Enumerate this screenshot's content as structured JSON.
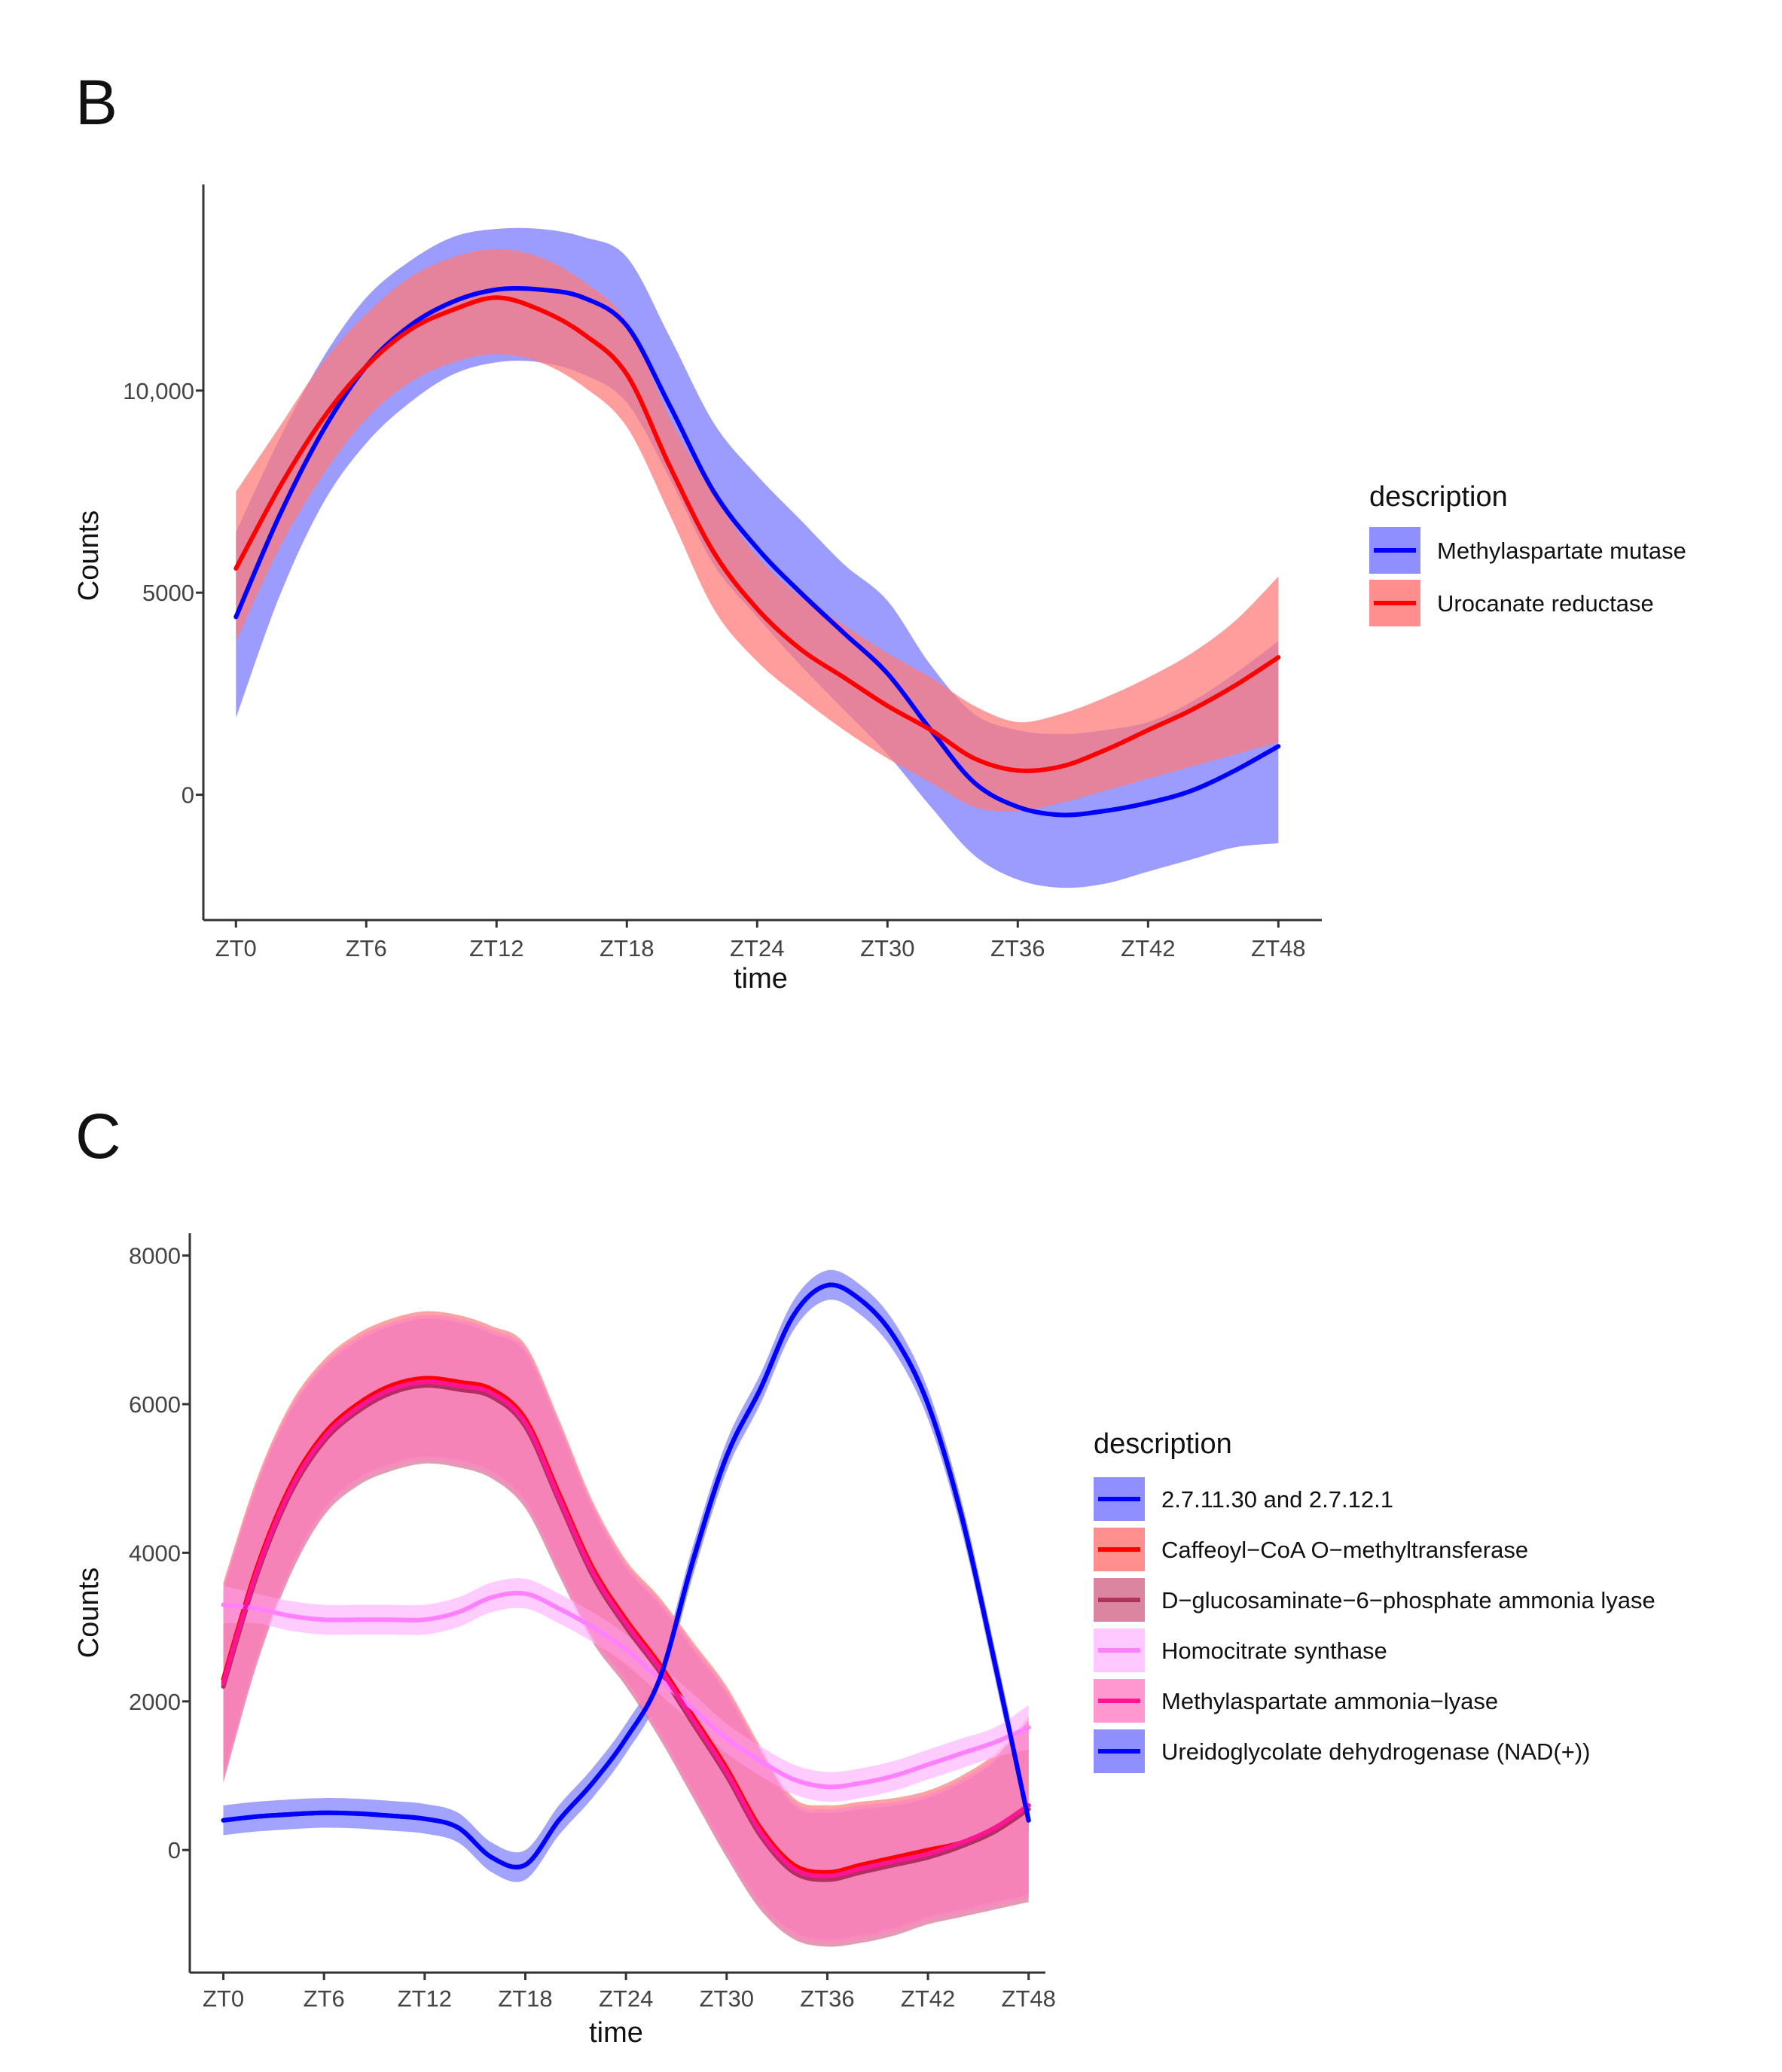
{
  "chart_data": [
    {
      "panel": "B",
      "type": "line",
      "subtype": "smoothed line with confidence band",
      "xlabel": "time",
      "ylabel": "Counts",
      "categories": [
        "ZT0",
        "ZT6",
        "ZT12",
        "ZT18",
        "ZT24",
        "ZT30",
        "ZT36",
        "ZT42",
        "ZT48"
      ],
      "x": [
        0,
        6,
        12,
        18,
        24,
        30,
        36,
        42,
        48
      ],
      "xlim": [
        -1.5,
        50
      ],
      "ylim": [
        -3100,
        15100
      ],
      "yticks": [
        0,
        5000,
        10000
      ],
      "ytick_labels": [
        "0",
        "5000",
        "10,000"
      ],
      "grid": false,
      "legend": {
        "title": "description",
        "position": "right"
      },
      "series": [
        {
          "name": "Methylaspartate mutase",
          "color": "#0000ff",
          "band_color": "#7b7bff",
          "band_opacity": 0.75,
          "x": [
            0,
            2,
            4,
            6,
            8,
            10,
            12,
            14,
            16,
            18,
            20,
            22,
            24,
            26,
            28,
            30,
            32,
            34,
            36,
            38,
            40,
            42,
            44,
            46,
            48
          ],
          "values": [
            4400,
            6900,
            9000,
            10600,
            11600,
            12200,
            12500,
            12500,
            12300,
            11600,
            9600,
            7500,
            6100,
            5000,
            4000,
            3000,
            1600,
            300,
            -300,
            -500,
            -400,
            -200,
            100,
            600,
            1200
          ],
          "lower": [
            1900,
            4900,
            7200,
            8700,
            9700,
            10400,
            10700,
            10700,
            10400,
            9700,
            7800,
            5700,
            4400,
            3200,
            2100,
            1000,
            -300,
            -1500,
            -2100,
            -2300,
            -2200,
            -1900,
            -1600,
            -1300,
            -1200
          ],
          "upper": [
            6500,
            8800,
            10800,
            12300,
            13200,
            13800,
            14000,
            14000,
            13800,
            13300,
            11300,
            9200,
            7900,
            6800,
            5700,
            4800,
            3200,
            2000,
            1600,
            1500,
            1600,
            1800,
            2300,
            3000,
            3800
          ]
        },
        {
          "name": "Urocanate reductase",
          "color": "#ff0000",
          "band_color": "#ff7b7b",
          "band_opacity": 0.75,
          "x": [
            0,
            2,
            4,
            6,
            8,
            10,
            12,
            14,
            16,
            18,
            20,
            22,
            24,
            26,
            28,
            30,
            32,
            34,
            36,
            38,
            40,
            42,
            44,
            46,
            48
          ],
          "values": [
            5600,
            7600,
            9300,
            10600,
            11500,
            12000,
            12300,
            12000,
            11400,
            10400,
            8100,
            6000,
            4600,
            3600,
            2900,
            2200,
            1600,
            900,
            600,
            700,
            1100,
            1600,
            2100,
            2700,
            3400
          ],
          "lower": [
            3800,
            6100,
            7900,
            9300,
            10200,
            10700,
            10900,
            10700,
            10100,
            9100,
            6900,
            4600,
            3300,
            2400,
            1600,
            900,
            300,
            -300,
            -400,
            -200,
            100,
            400,
            700,
            1000,
            1300
          ],
          "upper": [
            7500,
            9100,
            10700,
            11900,
            12800,
            13300,
            13500,
            13300,
            12700,
            11700,
            9300,
            7400,
            5900,
            4900,
            4200,
            3500,
            2900,
            2200,
            1800,
            2000,
            2400,
            2900,
            3500,
            4300,
            5400
          ]
        }
      ]
    },
    {
      "panel": "C",
      "type": "line",
      "subtype": "smoothed line with confidence band",
      "xlabel": "time",
      "ylabel": "Counts",
      "categories": [
        "ZT0",
        "ZT6",
        "ZT12",
        "ZT18",
        "ZT24",
        "ZT30",
        "ZT36",
        "ZT42",
        "ZT48"
      ],
      "x": [
        0,
        6,
        12,
        18,
        24,
        30,
        36,
        42,
        48
      ],
      "xlim": [
        -2,
        49
      ],
      "ylim": [
        -1650,
        8300
      ],
      "yticks": [
        0,
        2000,
        4000,
        6000,
        8000
      ],
      "ytick_labels": [
        "0",
        "2000",
        "4000",
        "6000",
        "8000"
      ],
      "grid": false,
      "legend": {
        "title": "description",
        "position": "right"
      },
      "series": [
        {
          "name": "2.7.11.30 and 2.7.12.1",
          "color": "#0000ff",
          "band_color": "#7b7bff",
          "band_opacity": 0.7,
          "x": [
            0,
            2,
            4,
            6,
            8,
            10,
            12,
            14,
            16,
            18,
            20,
            22,
            24,
            26,
            28,
            30,
            32,
            34,
            36,
            38,
            40,
            42,
            44,
            46,
            48
          ],
          "values": [
            400,
            450,
            480,
            500,
            490,
            460,
            420,
            300,
            -100,
            -200,
            400,
            900,
            1500,
            2300,
            3900,
            5300,
            6200,
            7200,
            7600,
            7400,
            6900,
            6000,
            4500,
            2500,
            400
          ],
          "lower": [
            200,
            250,
            280,
            300,
            290,
            260,
            220,
            100,
            -300,
            -400,
            200,
            700,
            1300,
            2100,
            3700,
            5100,
            6000,
            7000,
            7400,
            7200,
            6700,
            5800,
            4300,
            2300,
            200
          ],
          "upper": [
            600,
            650,
            680,
            700,
            690,
            660,
            620,
            500,
            100,
            0,
            600,
            1100,
            1700,
            2500,
            4100,
            5500,
            6400,
            7400,
            7800,
            7600,
            7100,
            6200,
            4700,
            2700,
            600
          ]
        },
        {
          "name": "Caffeoyl−CoA O−methyltransferase",
          "color": "#ff0000",
          "band_color": "#ff7b7b",
          "band_opacity": 0.7,
          "x": [
            0,
            2,
            4,
            6,
            8,
            10,
            12,
            14,
            16,
            18,
            20,
            22,
            24,
            26,
            28,
            30,
            32,
            34,
            36,
            38,
            40,
            42,
            44,
            46,
            48
          ],
          "values": [
            2300,
            3800,
            4900,
            5600,
            6000,
            6250,
            6350,
            6300,
            6200,
            5800,
            4800,
            3800,
            3100,
            2500,
            1800,
            1100,
            300,
            -200,
            -300,
            -200,
            -100,
            0,
            100,
            300,
            600
          ],
          "lower": [
            1000,
            2600,
            3800,
            4600,
            5000,
            5200,
            5300,
            5250,
            5100,
            4700,
            3800,
            2900,
            2300,
            1600,
            800,
            0,
            -700,
            -1100,
            -1200,
            -1150,
            -1050,
            -900,
            -800,
            -700,
            -600
          ],
          "upper": [
            3600,
            5000,
            6000,
            6600,
            6950,
            7150,
            7250,
            7200,
            7050,
            6800,
            5800,
            4700,
            3900,
            3400,
            2800,
            2200,
            1400,
            700,
            600,
            650,
            700,
            800,
            1000,
            1300,
            1800
          ]
        },
        {
          "name": "D−glucosaminate−6−phosphate ammonia lyase",
          "color": "#b03060",
          "band_color": "#d6708f",
          "band_opacity": 0.7,
          "x": [
            0,
            2,
            4,
            6,
            8,
            10,
            12,
            14,
            16,
            18,
            20,
            22,
            24,
            26,
            28,
            30,
            32,
            34,
            36,
            38,
            40,
            42,
            44,
            46,
            48
          ],
          "values": [
            2200,
            3700,
            4800,
            5500,
            5900,
            6150,
            6250,
            6200,
            6100,
            5700,
            4700,
            3700,
            3000,
            2400,
            1700,
            1000,
            200,
            -300,
            -400,
            -300,
            -200,
            -100,
            50,
            250,
            550
          ],
          "lower": [
            900,
            2500,
            3700,
            4500,
            4900,
            5100,
            5200,
            5150,
            5000,
            4600,
            3700,
            2800,
            2200,
            1500,
            700,
            -100,
            -800,
            -1200,
            -1300,
            -1250,
            -1150,
            -1000,
            -900,
            -800,
            -700
          ],
          "upper": [
            3500,
            4900,
            5900,
            6500,
            6850,
            7050,
            7150,
            7100,
            6950,
            6700,
            5700,
            4600,
            3800,
            3300,
            2700,
            2100,
            1300,
            600,
            500,
            550,
            600,
            700,
            900,
            1200,
            1700
          ]
        },
        {
          "name": "Homocitrate synthase",
          "color": "#ff80ff",
          "band_color": "#ffbfff",
          "band_opacity": 0.8,
          "x": [
            0,
            2,
            4,
            6,
            8,
            10,
            12,
            14,
            16,
            18,
            20,
            22,
            24,
            26,
            28,
            30,
            32,
            34,
            36,
            38,
            40,
            42,
            44,
            46,
            48
          ],
          "values": [
            3300,
            3250,
            3150,
            3100,
            3100,
            3100,
            3100,
            3200,
            3400,
            3450,
            3250,
            3000,
            2700,
            2300,
            1900,
            1500,
            1200,
            950,
            850,
            900,
            1000,
            1150,
            1300,
            1450,
            1650
          ],
          "lower": [
            3050,
            3050,
            2950,
            2900,
            2900,
            2900,
            2900,
            3000,
            3200,
            3250,
            3050,
            2800,
            2500,
            2100,
            1700,
            1300,
            1000,
            750,
            650,
            700,
            800,
            950,
            1100,
            1250,
            1350
          ],
          "upper": [
            3550,
            3450,
            3350,
            3300,
            3300,
            3300,
            3300,
            3400,
            3600,
            3650,
            3450,
            3200,
            2900,
            2500,
            2100,
            1700,
            1400,
            1150,
            1050,
            1100,
            1200,
            1350,
            1500,
            1650,
            1950
          ]
        },
        {
          "name": "Methylaspartate ammonia−lyase",
          "color": "#ff1493",
          "band_color": "#ff85c8",
          "band_opacity": 0.7,
          "x": [
            0,
            2,
            4,
            6,
            8,
            10,
            12,
            14,
            16,
            18,
            20,
            22,
            24,
            26,
            28,
            30,
            32,
            34,
            36,
            38,
            40,
            42,
            44,
            46,
            48
          ],
          "values": [
            2250,
            3750,
            4850,
            5550,
            5950,
            6200,
            6300,
            6250,
            6150,
            5750,
            4750,
            3750,
            3050,
            2450,
            1750,
            1050,
            250,
            -250,
            -350,
            -250,
            -150,
            -50,
            100,
            300,
            600
          ],
          "lower": [
            950,
            2550,
            3750,
            4550,
            4950,
            5150,
            5250,
            5200,
            5050,
            4650,
            3750,
            2850,
            2250,
            1550,
            750,
            -50,
            -750,
            -1150,
            -1250,
            -1200,
            -1100,
            -950,
            -850,
            -750,
            -650
          ],
          "upper": [
            3550,
            4950,
            5950,
            6550,
            6900,
            7100,
            7200,
            7150,
            7000,
            6750,
            5750,
            4650,
            3850,
            3350,
            2750,
            2150,
            1350,
            650,
            550,
            600,
            650,
            750,
            950,
            1250,
            1750
          ]
        },
        {
          "name": "Ureidoglycolate dehydrogenase (NAD(+))",
          "color": "#0000ff",
          "band_color": "#7b7bff",
          "band_opacity": 0.0,
          "x": [
            0,
            2,
            4,
            6,
            8,
            10,
            12,
            14,
            16,
            18,
            20,
            22,
            24,
            26,
            28,
            30,
            32,
            34,
            36,
            38,
            40,
            42,
            44,
            46,
            48
          ],
          "values": [
            400,
            450,
            480,
            500,
            490,
            460,
            420,
            300,
            -100,
            -200,
            400,
            900,
            1500,
            2300,
            3900,
            5300,
            6200,
            7200,
            7600,
            7400,
            6900,
            6000,
            4500,
            2500,
            400
          ],
          "lower": [
            200,
            250,
            280,
            300,
            290,
            260,
            220,
            100,
            -300,
            -400,
            200,
            700,
            1300,
            2100,
            3700,
            5100,
            6000,
            7000,
            7400,
            7200,
            6700,
            5800,
            4300,
            2300,
            200
          ],
          "upper": [
            600,
            650,
            680,
            700,
            690,
            660,
            620,
            500,
            100,
            0,
            600,
            1100,
            1700,
            2500,
            4100,
            5500,
            6400,
            7400,
            7800,
            7600,
            7100,
            6200,
            4700,
            2700,
            600
          ]
        }
      ]
    }
  ]
}
